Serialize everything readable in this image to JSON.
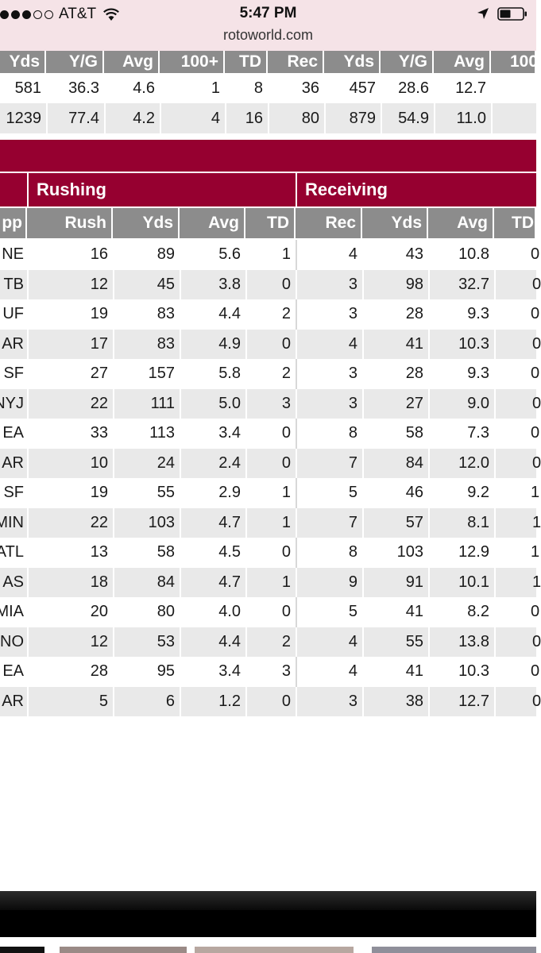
{
  "status_bar": {
    "carrier": "AT&T",
    "time": "5:47 PM",
    "url": "rotoworld.com",
    "icons": [
      "signal-dots",
      "wifi-icon",
      "location-arrow-icon",
      "battery-icon"
    ]
  },
  "summary_table": {
    "headers": [
      "Yds",
      "Y/G",
      "Avg",
      "100+",
      "TD",
      "Rec",
      "Yds",
      "Y/G",
      "Avg",
      "100"
    ],
    "rows": [
      [
        "581",
        "36.3",
        "4.6",
        "1",
        "8",
        "36",
        "457",
        "28.6",
        "12.7",
        ""
      ],
      [
        "1239",
        "77.4",
        "4.2",
        "4",
        "16",
        "80",
        "879",
        "54.9",
        "11.0",
        ""
      ]
    ]
  },
  "game_log": {
    "sections": [
      "Rushing",
      "Receiving"
    ],
    "headers": [
      "pp",
      "Rush",
      "Yds",
      "Avg",
      "TD",
      "Rec",
      "Yds",
      "Avg",
      "TD"
    ],
    "rows": [
      [
        "NE",
        "16",
        "89",
        "5.6",
        "1",
        "4",
        "43",
        "10.8",
        "0"
      ],
      [
        "TB",
        "12",
        "45",
        "3.8",
        "0",
        "3",
        "98",
        "32.7",
        "0"
      ],
      [
        "UF",
        "19",
        "83",
        "4.4",
        "2",
        "3",
        "28",
        "9.3",
        "0"
      ],
      [
        "AR",
        "17",
        "83",
        "4.9",
        "0",
        "4",
        "41",
        "10.3",
        "0"
      ],
      [
        "SF",
        "27",
        "157",
        "5.8",
        "2",
        "3",
        "28",
        "9.3",
        "0"
      ],
      [
        "NYJ",
        "22",
        "111",
        "5.0",
        "3",
        "3",
        "27",
        "9.0",
        "0"
      ],
      [
        "EA",
        "33",
        "113",
        "3.4",
        "0",
        "8",
        "58",
        "7.3",
        "0"
      ],
      [
        "AR",
        "10",
        "24",
        "2.4",
        "0",
        "7",
        "84",
        "12.0",
        "0"
      ],
      [
        "SF",
        "19",
        "55",
        "2.9",
        "1",
        "5",
        "46",
        "9.2",
        "1"
      ],
      [
        "MIN",
        "22",
        "103",
        "4.7",
        "1",
        "7",
        "57",
        "8.1",
        "1"
      ],
      [
        "ATL",
        "13",
        "58",
        "4.5",
        "0",
        "8",
        "103",
        "12.9",
        "1"
      ],
      [
        "AS",
        "18",
        "84",
        "4.7",
        "1",
        "9",
        "91",
        "10.1",
        "1"
      ],
      [
        "MIA",
        "20",
        "80",
        "4.0",
        "0",
        "5",
        "41",
        "8.2",
        "0"
      ],
      [
        "NO",
        "12",
        "53",
        "4.4",
        "2",
        "4",
        "55",
        "13.8",
        "0"
      ],
      [
        "EA",
        "28",
        "95",
        "3.4",
        "3",
        "4",
        "41",
        "10.3",
        "0"
      ],
      [
        "AR",
        "5",
        "6",
        "1.2",
        "0",
        "3",
        "38",
        "12.7",
        "0"
      ]
    ]
  },
  "colors": {
    "accent": "#960030",
    "header_gray": "#8c8c8c",
    "alt_row": "#e9e9e9",
    "status_bar_bg": "#f5e3e7"
  }
}
